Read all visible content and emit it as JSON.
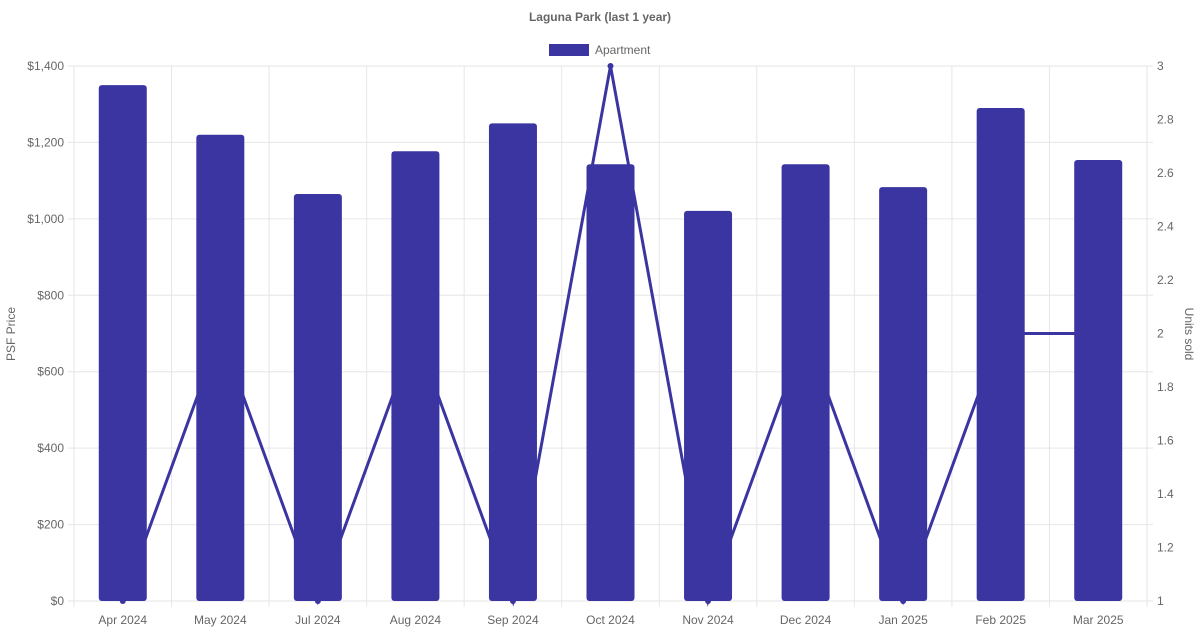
{
  "chart_data": {
    "type": "bar",
    "title": "Laguna Park (last 1 year)",
    "categories": [
      "Apr 2024",
      "May 2024",
      "Jul 2024",
      "Aug 2024",
      "Sep 2024",
      "Oct 2024",
      "Nov 2024",
      "Dec 2024",
      "Jan 2025",
      "Feb 2025",
      "Mar 2025"
    ],
    "series": [
      {
        "name": "Apartment",
        "type": "bar",
        "axis": "left",
        "color": "#3a35a0",
        "values": [
          1350,
          1220,
          1065,
          1177,
          1250,
          1143,
          1021,
          1143,
          1083,
          1290,
          1154
        ]
      },
      {
        "type": "line",
        "axis": "right",
        "color": "#3a35a0",
        "values": [
          1,
          2,
          1,
          2,
          1,
          3,
          1,
          2,
          1,
          2,
          2
        ]
      }
    ],
    "ylabel": "PSF Price",
    "ylabel_right": "Units sold",
    "ylim": [
      0,
      1400
    ],
    "ylim_right": [
      1,
      3
    ],
    "y_ticks": [
      "$0",
      "$200",
      "$400",
      "$600",
      "$800",
      "$1,000",
      "$1,200",
      "$1,400"
    ],
    "y_ticks_right": [
      "1",
      "1.2",
      "1.4",
      "1.6",
      "1.8",
      "2",
      "2.2",
      "2.4",
      "2.6",
      "2.8",
      "3"
    ],
    "grid": true,
    "legend_position": "top"
  }
}
